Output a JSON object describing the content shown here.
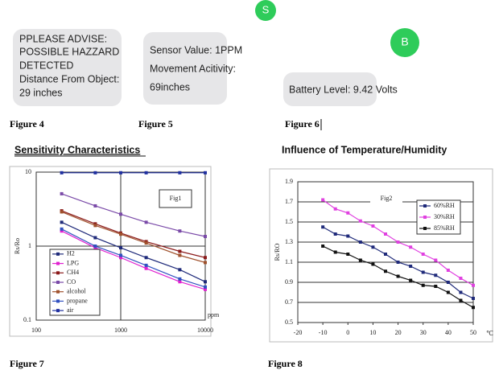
{
  "bubbles": [
    {
      "lines": [
        "PPLEASE ADVISE:",
        "POSSIBLE HAZZARD",
        "DETECTED",
        "Distance From Object:",
        "29 inches"
      ]
    },
    {
      "lines": [
        "Sensor Value: 1PPM",
        "Movement Acitivity:",
        "69inches"
      ]
    },
    {
      "lines": [
        "Battery Level: 9.42 Volts"
      ]
    }
  ],
  "avatars": [
    "S",
    "B"
  ],
  "captions": [
    "Figure 4",
    "Figure 5",
    "Figure 6",
    "Figure 7",
    "Figure 8"
  ],
  "headings": [
    "Sensitivity Characteristics",
    "Influence of Temperature/Humidity"
  ],
  "chart_data": [
    {
      "type": "line",
      "annotation": "Fig1",
      "ylabel": "Rs/Ro",
      "xlabel": "ppm",
      "log_x": true,
      "log_y": true,
      "x": [
        200,
        500,
        1000,
        2000,
        5000,
        10000
      ],
      "series": [
        {
          "name": "H2",
          "color": "#1f2a7a",
          "values": [
            2.1,
            1.3,
            0.95,
            0.7,
            0.48,
            0.33
          ]
        },
        {
          "name": "LPG",
          "color": "#e020d0",
          "values": [
            1.6,
            0.95,
            0.7,
            0.5,
            0.33,
            0.26
          ]
        },
        {
          "name": "CH4",
          "color": "#8b1a1a",
          "values": [
            3.0,
            2.0,
            1.5,
            1.15,
            0.85,
            0.7
          ]
        },
        {
          "name": "CO",
          "color": "#7a4aa8",
          "values": [
            5.1,
            3.5,
            2.7,
            2.1,
            1.6,
            1.35
          ]
        },
        {
          "name": "alcohol",
          "color": "#a0522d",
          "values": [
            2.9,
            1.9,
            1.45,
            1.1,
            0.75,
            0.6
          ]
        },
        {
          "name": "propane",
          "color": "#3050c0",
          "values": [
            1.7,
            1.0,
            0.75,
            0.55,
            0.36,
            0.28
          ]
        },
        {
          "name": "air",
          "color": "#2030a0",
          "values": [
            9.8,
            9.8,
            9.8,
            9.8,
            9.8,
            9.8
          ]
        }
      ],
      "xlim": [
        100,
        10000
      ],
      "ylim": [
        0.1,
        10
      ],
      "xticks": [
        100,
        1000,
        10000
      ],
      "yticks": [
        0.1,
        1,
        10
      ],
      "grid": true,
      "legend": "lower left"
    },
    {
      "type": "line",
      "annotation": "Fig2",
      "ylabel": "Rs/RO",
      "xlabel": "℃",
      "log_x": false,
      "log_y": false,
      "x": [
        -10,
        -5,
        0,
        5,
        10,
        15,
        20,
        25,
        30,
        35,
        40,
        45,
        50
      ],
      "series": [
        {
          "name": "60%RH",
          "color": "#1f2a7a",
          "values": [
            1.45,
            1.38,
            1.36,
            1.3,
            1.25,
            1.18,
            1.1,
            1.06,
            1.0,
            0.97,
            0.9,
            0.8,
            0.74
          ]
        },
        {
          "name": "30%RH",
          "color": "#e040e0",
          "values": [
            1.72,
            1.63,
            1.59,
            1.51,
            1.46,
            1.38,
            1.3,
            1.25,
            1.18,
            1.12,
            1.02,
            0.94,
            0.87
          ]
        },
        {
          "name": "85%RH",
          "color": "#111111",
          "values": [
            1.26,
            1.2,
            1.18,
            1.12,
            1.08,
            1.01,
            0.96,
            0.92,
            0.87,
            0.86,
            0.8,
            0.72,
            0.65
          ]
        }
      ],
      "xlim": [
        -20,
        50
      ],
      "ylim": [
        0.5,
        1.9
      ],
      "xticks": [
        -20,
        -10,
        0,
        10,
        20,
        30,
        40,
        50
      ],
      "yticks": [
        0.5,
        0.7,
        0.9,
        1.1,
        1.3,
        1.5,
        1.7,
        1.9
      ],
      "grid": true,
      "legend": "upper right"
    }
  ]
}
